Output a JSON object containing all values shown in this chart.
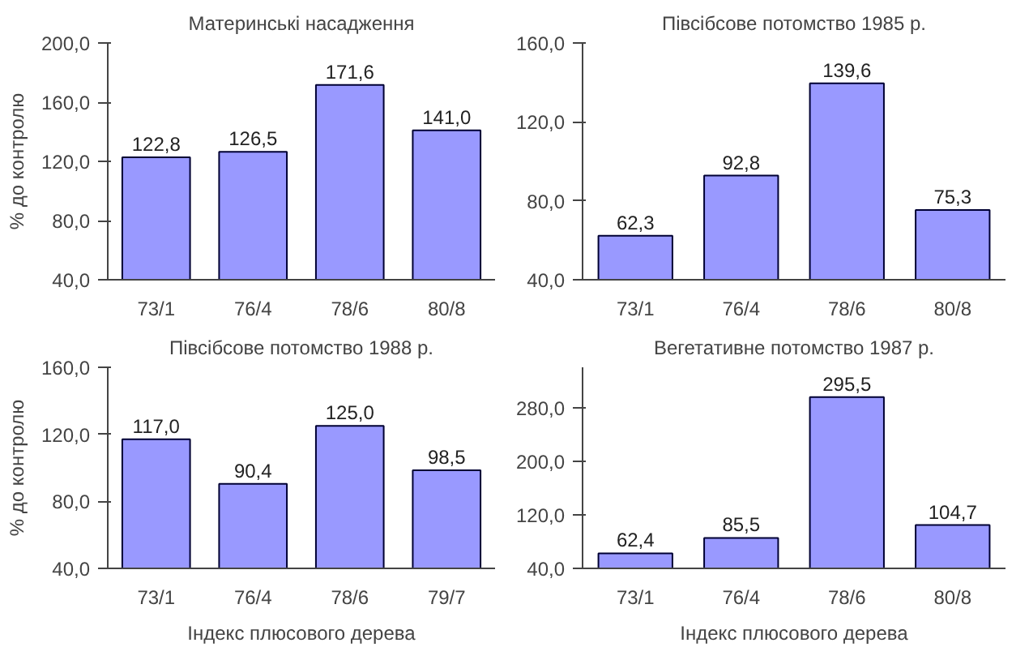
{
  "chart_data": [
    {
      "type": "bar",
      "title": "Материнські насадження",
      "ylabel": "% до контролю",
      "categories": [
        "73/1",
        "76/4",
        "78/6",
        "80/8"
      ],
      "values": [
        122.8,
        126.5,
        171.6,
        141.0
      ],
      "value_labels": [
        "122,8",
        "126,5",
        "171,6",
        "141,0"
      ],
      "color": "#9999ff",
      "ylim": [
        40,
        200
      ],
      "yticks": [
        {
          "value": 40,
          "label": "40,0"
        },
        {
          "value": 80,
          "label": "80,0"
        },
        {
          "value": 120,
          "label": "120,0"
        },
        {
          "value": 160,
          "label": "160,0"
        },
        {
          "value": 200,
          "label": "200,0"
        }
      ],
      "grid": false
    },
    {
      "type": "bar",
      "title": "Півсібсове потомство 1985 р.",
      "categories": [
        "73/1",
        "76/4",
        "78/6",
        "80/8"
      ],
      "values": [
        62.3,
        92.8,
        139.6,
        75.3
      ],
      "value_labels": [
        "62,3",
        "92,8",
        "139,6",
        "75,3"
      ],
      "color": "#9999ff",
      "ylim": [
        40,
        160
      ],
      "yticks": [
        {
          "value": 40,
          "label": "40,0"
        },
        {
          "value": 80,
          "label": "80,0"
        },
        {
          "value": 120,
          "label": "120,0"
        },
        {
          "value": 160,
          "label": "160,0"
        }
      ],
      "grid": false
    },
    {
      "type": "bar",
      "title": "Півсібсове потомство 1988 р.",
      "ylabel": "% до контролю",
      "xlabel": "Індекс плюсового дерева",
      "categories": [
        "73/1",
        "76/4",
        "78/6",
        "79/7"
      ],
      "values": [
        117.0,
        90.4,
        125.0,
        98.5
      ],
      "value_labels": [
        "117,0",
        "90,4",
        "125,0",
        "98,5"
      ],
      "color": "#9999ff",
      "ylim": [
        40,
        160
      ],
      "yticks": [
        {
          "value": 40,
          "label": "40,0"
        },
        {
          "value": 80,
          "label": "80,0"
        },
        {
          "value": 120,
          "label": "120,0"
        },
        {
          "value": 160,
          "label": "160,0"
        }
      ],
      "grid": false
    },
    {
      "type": "bar",
      "title": "Вегетативне потомство 1987 р.",
      "xlabel": "Індекс плюсового дерева",
      "categories": [
        "73/1",
        "76/4",
        "78/6",
        "80/8"
      ],
      "values": [
        62.4,
        85.5,
        295.5,
        104.7
      ],
      "value_labels": [
        "62,4",
        "85,5",
        "295,5",
        "104,7"
      ],
      "color": "#9999ff",
      "ylim": [
        40,
        340
      ],
      "yticks": [
        {
          "value": 40,
          "label": "40,0"
        },
        {
          "value": 120,
          "label": "120,0"
        },
        {
          "value": 200,
          "label": "200,0"
        },
        {
          "value": 280,
          "label": "280,0"
        }
      ],
      "grid": false
    }
  ]
}
